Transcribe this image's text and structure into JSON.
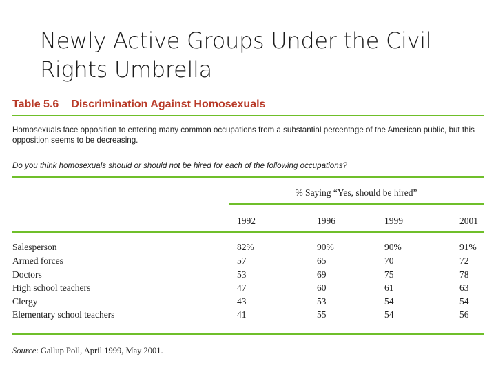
{
  "slide": {
    "title": "Newly Active Groups Under the Civil Rights Umbrella"
  },
  "table": {
    "number": "Table 5.6",
    "title": "Discrimination Against Homosexuals",
    "intro": "Homosexuals face opposition to entering many common occupations from a substantial percentage of the American public, but this opposition seems to be decreasing.",
    "question": "Do you think homosexuals should or should not be hired for each of the following occupations?",
    "column_group_label": "% Saying “Yes, should be hired”",
    "years": [
      "1992",
      "1996",
      "1999",
      "2001"
    ],
    "rows": [
      {
        "label": "Salesperson",
        "values": [
          "82%",
          "90%",
          "90%",
          "91%"
        ]
      },
      {
        "label": "Armed forces",
        "values": [
          "57",
          "65",
          "70",
          "72"
        ]
      },
      {
        "label": "Doctors",
        "values": [
          "53",
          "69",
          "75",
          "78"
        ]
      },
      {
        "label": "High school teachers",
        "values": [
          "47",
          "60",
          "61",
          "63"
        ]
      },
      {
        "label": "Clergy",
        "values": [
          "43",
          "53",
          "54",
          "54"
        ]
      },
      {
        "label": "Elementary school teachers",
        "values": [
          "41",
          "55",
          "54",
          "56"
        ]
      }
    ],
    "source_label": "Source",
    "source_text": ": Gallup Poll, April 1999, May 2001."
  },
  "colors": {
    "heading_red": "#b83a28",
    "rule_green": "#6fbf2a"
  }
}
